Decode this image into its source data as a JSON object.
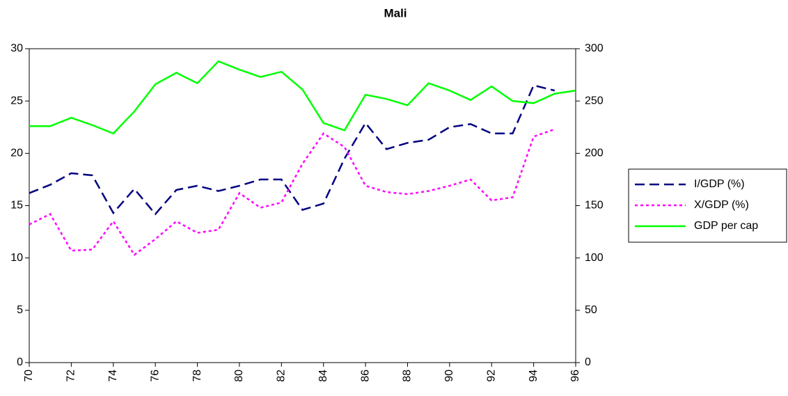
{
  "chart_data": {
    "type": "line",
    "title": "Mali",
    "x": [
      70,
      71,
      72,
      73,
      74,
      75,
      76,
      77,
      78,
      79,
      80,
      81,
      82,
      83,
      84,
      85,
      86,
      87,
      88,
      89,
      90,
      91,
      92,
      93,
      94,
      95,
      96
    ],
    "xlim": [
      70,
      96
    ],
    "xticks": [
      70,
      72,
      74,
      76,
      78,
      80,
      82,
      84,
      86,
      88,
      90,
      92,
      94,
      96
    ],
    "ylim": [
      0,
      30
    ],
    "yticks": [
      0,
      5,
      10,
      15,
      20,
      25,
      30
    ],
    "y2lim": [
      0,
      300
    ],
    "y2ticks": [
      0,
      50,
      100,
      150,
      200,
      250,
      300
    ],
    "legend": "right",
    "series": [
      {
        "name": "I/GDP (%)",
        "color": "#000080",
        "line_style": "dashed",
        "values": [
          16.2,
          17.0,
          18.1,
          17.9,
          14.3,
          16.6,
          14.2,
          16.5,
          16.9,
          16.4,
          16.9,
          17.5,
          17.5,
          14.6,
          15.2,
          19.5,
          22.9,
          20.4,
          21.0,
          21.3,
          22.5,
          22.8,
          21.9,
          21.9,
          26.5,
          26.0,
          null
        ]
      },
      {
        "name": "X/GDP (%)",
        "color": "#ff00ff",
        "line_style": "dotted",
        "values": [
          13.2,
          14.2,
          10.7,
          10.8,
          13.5,
          10.3,
          11.8,
          13.5,
          12.4,
          12.7,
          16.2,
          14.8,
          15.3,
          19.0,
          21.9,
          20.6,
          16.9,
          16.3,
          16.1,
          16.4,
          16.9,
          17.5,
          15.5,
          15.8,
          21.6,
          22.3,
          null
        ]
      },
      {
        "name": "GDP per cap",
        "color": "#00ff00",
        "line_style": "solid",
        "axis": "y2",
        "values": [
          226,
          226,
          234,
          227,
          219,
          240,
          266,
          277,
          267,
          288,
          280,
          273,
          278,
          261,
          229,
          222,
          256,
          252,
          246,
          267,
          260,
          251,
          264,
          250,
          248,
          257,
          260
        ]
      }
    ]
  }
}
